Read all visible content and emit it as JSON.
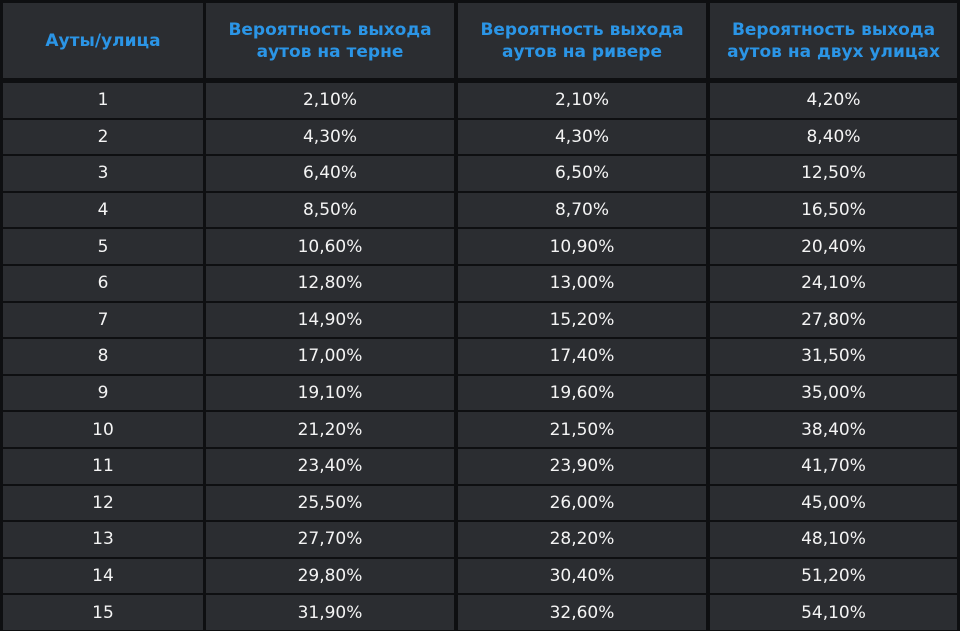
{
  "table": {
    "headers": [
      "Ауты/улица",
      "Вероятность выхода аутов на терне",
      "Вероятность выхода аутов на ривере",
      "Вероятность выхода аутов на двух улицах"
    ],
    "rows": [
      [
        "1",
        "2,10%",
        "2,10%",
        "4,20%"
      ],
      [
        "2",
        "4,30%",
        "4,30%",
        "8,40%"
      ],
      [
        "3",
        "6,40%",
        "6,50%",
        "12,50%"
      ],
      [
        "4",
        "8,50%",
        "8,70%",
        "16,50%"
      ],
      [
        "5",
        "10,60%",
        "10,90%",
        "20,40%"
      ],
      [
        "6",
        "12,80%",
        "13,00%",
        "24,10%"
      ],
      [
        "7",
        "14,90%",
        "15,20%",
        "27,80%"
      ],
      [
        "8",
        "17,00%",
        "17,40%",
        "31,50%"
      ],
      [
        "9",
        "19,10%",
        "19,60%",
        "35,00%"
      ],
      [
        "10",
        "21,20%",
        "21,50%",
        "38,40%"
      ],
      [
        "11",
        "23,40%",
        "23,90%",
        "41,70%"
      ],
      [
        "12",
        "25,50%",
        "26,00%",
        "45,00%"
      ],
      [
        "13",
        "27,70%",
        "28,20%",
        "48,10%"
      ],
      [
        "14",
        "29,80%",
        "30,40%",
        "51,20%"
      ],
      [
        "15",
        "31,90%",
        "32,60%",
        "54,10%"
      ]
    ]
  },
  "colors": {
    "background": "#0e0f11",
    "cell": "#2b2d31",
    "header_text": "#2b95e6",
    "body_text": "#f4f4f4"
  }
}
